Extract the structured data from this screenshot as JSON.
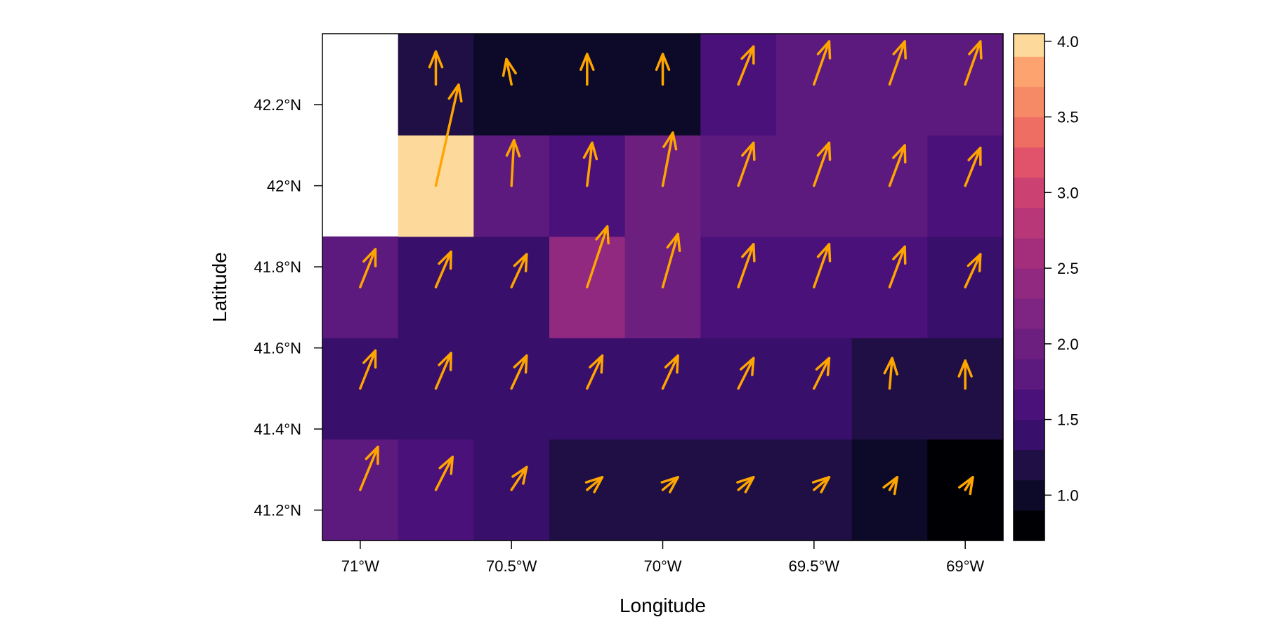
{
  "chart_data": {
    "type": "heatmap",
    "title": "",
    "xlabel": "Longitude",
    "ylabel": "Latitude",
    "x_ticks": [
      {
        "value": -71.0,
        "label": "71°W"
      },
      {
        "value": -70.5,
        "label": "70.5°W"
      },
      {
        "value": -70.0,
        "label": "70°W"
      },
      {
        "value": -69.5,
        "label": "69.5°W"
      },
      {
        "value": -69.0,
        "label": "69°W"
      }
    ],
    "y_ticks": [
      {
        "value": 41.2,
        "label": "41.2°N"
      },
      {
        "value": 41.4,
        "label": "41.4°N"
      },
      {
        "value": 41.6,
        "label": "41.6°N"
      },
      {
        "value": 41.8,
        "label": "41.8°N"
      },
      {
        "value": 42.0,
        "label": "42°N"
      },
      {
        "value": 42.2,
        "label": "42.2°N"
      }
    ],
    "xlim": [
      -71.125,
      -68.875
    ],
    "ylim": [
      41.125,
      42.375
    ],
    "lon": [
      -71.0,
      -70.75,
      -70.5,
      -70.25,
      -70.0,
      -69.75,
      -69.5,
      -69.25,
      -69.0
    ],
    "lat": [
      41.25,
      41.5,
      41.75,
      42.0,
      42.25
    ],
    "values": [
      [
        1.85,
        1.65,
        1.45,
        1.15,
        1.15,
        1.15,
        1.15,
        1.0,
        0.78
      ],
      [
        1.45,
        1.45,
        1.45,
        1.45,
        1.45,
        1.45,
        1.45,
        1.2,
        1.2
      ],
      [
        1.75,
        1.45,
        1.45,
        2.45,
        2.05,
        1.65,
        1.65,
        1.65,
        1.45
      ],
      [
        null,
        4.02,
        1.85,
        1.65,
        2.05,
        1.85,
        1.85,
        1.85,
        1.65
      ],
      [
        null,
        1.25,
        1.05,
        1.05,
        1.05,
        1.65,
        1.85,
        1.85,
        1.85
      ]
    ],
    "vectors": [
      [
        [
          0.35,
          0.85
        ],
        [
          0.33,
          0.65
        ],
        [
          0.3,
          0.45
        ],
        [
          0.3,
          0.25
        ],
        [
          0.3,
          0.25
        ],
        [
          0.3,
          0.25
        ],
        [
          0.3,
          0.25
        ],
        [
          0.15,
          0.25
        ],
        [
          0.15,
          0.25
        ]
      ],
      [
        [
          0.3,
          0.75
        ],
        [
          0.3,
          0.7
        ],
        [
          0.3,
          0.65
        ],
        [
          0.3,
          0.65
        ],
        [
          0.3,
          0.65
        ],
        [
          0.3,
          0.6
        ],
        [
          0.3,
          0.6
        ],
        [
          0.05,
          0.6
        ],
        [
          0.0,
          0.55
        ]
      ],
      [
        [
          0.3,
          0.75
        ],
        [
          0.3,
          0.7
        ],
        [
          0.3,
          0.65
        ],
        [
          0.4,
          1.2
        ],
        [
          0.3,
          1.05
        ],
        [
          0.3,
          0.85
        ],
        [
          0.3,
          0.85
        ],
        [
          0.3,
          0.8
        ],
        [
          0.3,
          0.65
        ]
      ],
      [
        [
          0.0,
          0.0
        ],
        [
          0.45,
          2.0
        ],
        [
          0.05,
          0.9
        ],
        [
          0.1,
          0.85
        ],
        [
          0.2,
          1.05
        ],
        [
          0.3,
          0.85
        ],
        [
          0.3,
          0.85
        ],
        [
          0.3,
          0.8
        ],
        [
          0.3,
          0.75
        ]
      ],
      [
        [
          0.0,
          0.0
        ],
        [
          0.0,
          0.65
        ],
        [
          -0.1,
          0.5
        ],
        [
          0.0,
          0.6
        ],
        [
          0.0,
          0.6
        ],
        [
          0.3,
          0.75
        ],
        [
          0.3,
          0.85
        ],
        [
          0.3,
          0.85
        ],
        [
          0.3,
          0.85
        ]
      ]
    ],
    "colorbar": {
      "breaks": [
        0.7,
        0.9,
        1.1,
        1.3,
        1.5,
        1.7,
        1.9,
        2.1,
        2.3,
        2.5,
        2.7,
        2.9,
        3.1,
        3.3,
        3.5,
        3.7,
        3.9,
        4.05
      ],
      "colors": [
        "#000004",
        "#0d0a29",
        "#1f0f44",
        "#380f6b",
        "#4b117a",
        "#5c1a7f",
        "#6d1f80",
        "#7e2482",
        "#90297f",
        "#a42e7c",
        "#b83779",
        "#cb4172",
        "#e0536a",
        "#ef6e64",
        "#f78a66",
        "#fca36f",
        "#fdd99b"
      ],
      "tick_values": [
        1.0,
        1.5,
        2.0,
        2.5,
        3.0,
        3.5,
        4.0
      ],
      "tick_labels": [
        "1.0",
        "1.5",
        "2.0",
        "2.5",
        "3.0",
        "3.5",
        "4.0"
      ]
    },
    "arrow_color": "#FFA500",
    "grid": false,
    "legend": "right"
  }
}
